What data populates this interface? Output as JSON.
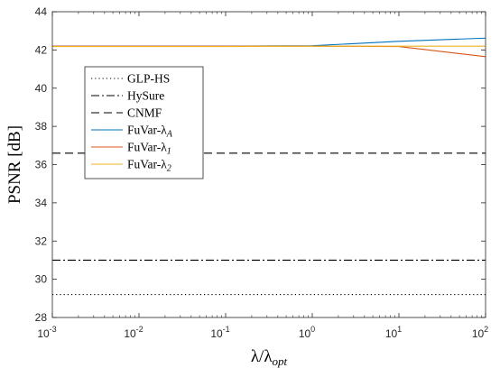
{
  "chart_data": {
    "type": "line",
    "xlabel": "λ/λ",
    "xlabel_sub": "opt",
    "ylabel": "PSNR [dB]",
    "xscale": "log",
    "xlim": [
      0.001,
      100
    ],
    "ylim": [
      28,
      44
    ],
    "x_ticks": [
      {
        "base": "10",
        "exp": "-3"
      },
      {
        "base": "10",
        "exp": "-2"
      },
      {
        "base": "10",
        "exp": "-1"
      },
      {
        "base": "10",
        "exp": "0"
      },
      {
        "base": "10",
        "exp": "1"
      },
      {
        "base": "10",
        "exp": "2"
      }
    ],
    "y_ticks": [
      "28",
      "30",
      "32",
      "34",
      "36",
      "38",
      "40",
      "42",
      "44"
    ],
    "grid": false,
    "legend_position": "left, middle",
    "series": [
      {
        "name": "GLP-HS",
        "style": "dotted",
        "color": "#000000",
        "x": [
          0.001,
          100
        ],
        "y": [
          29.2,
          29.2
        ]
      },
      {
        "name": "HySure",
        "style": "dashdot",
        "color": "#000000",
        "x": [
          0.001,
          100
        ],
        "y": [
          31.0,
          31.0
        ]
      },
      {
        "name": "CNMF",
        "style": "dashed",
        "color": "#000000",
        "x": [
          0.001,
          100
        ],
        "y": [
          36.6,
          36.6
        ]
      },
      {
        "name": "FuVar-λ",
        "name_sub": "A",
        "style": "solid",
        "color": "#0072BD",
        "x": [
          0.001,
          0.01,
          0.1,
          1,
          10,
          100
        ],
        "y": [
          42.2,
          42.2,
          42.2,
          42.22,
          42.45,
          42.62
        ]
      },
      {
        "name": "FuVar-λ",
        "name_sub": "1",
        "style": "solid",
        "color": "#D95319",
        "x": [
          0.001,
          0.01,
          0.1,
          1,
          10,
          100
        ],
        "y": [
          42.2,
          42.2,
          42.2,
          42.2,
          42.18,
          41.65
        ]
      },
      {
        "name": "FuVar-λ",
        "name_sub": "2",
        "style": "solid",
        "color": "#EDB120",
        "x": [
          0.001,
          0.01,
          0.1,
          1,
          10,
          100
        ],
        "y": [
          42.18,
          42.18,
          42.18,
          42.2,
          42.2,
          42.2
        ]
      }
    ]
  }
}
